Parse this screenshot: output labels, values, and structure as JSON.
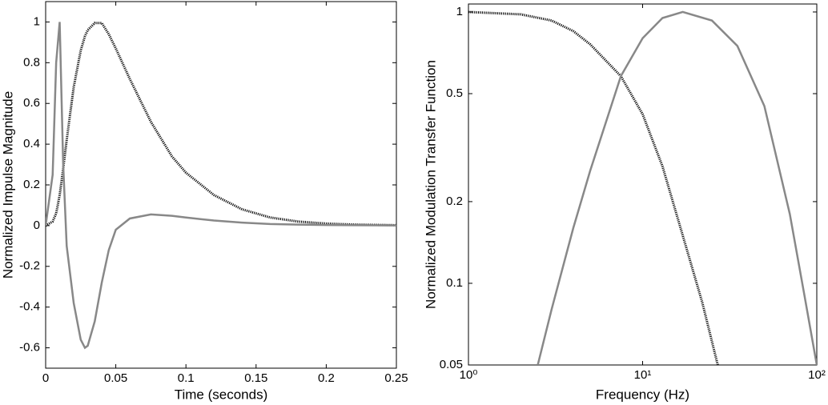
{
  "chart_data": [
    {
      "type": "line",
      "x_label": "Time (seconds)",
      "y_label": "Normalized Impulse Magnitude",
      "x": [
        0,
        0.005,
        0.0075,
        0.01,
        0.0125,
        0.015,
        0.02,
        0.025,
        0.028,
        0.03,
        0.035,
        0.04,
        0.045,
        0.05,
        0.06,
        0.075,
        0.09,
        0.1,
        0.12,
        0.14,
        0.16,
        0.18,
        0.2,
        0.22,
        0.25
      ],
      "series": [
        {
          "color": "#111111",
          "style": "dotted",
          "values": [
            0,
            0.02,
            0.06,
            0.15,
            0.28,
            0.42,
            0.68,
            0.86,
            0.93,
            0.96,
            0.995,
            0.995,
            0.94,
            0.87,
            0.72,
            0.51,
            0.34,
            0.26,
            0.15,
            0.08,
            0.04,
            0.02,
            0.01,
            0.005,
            0.002
          ]
        },
        {
          "color": "#888888",
          "style": "solid",
          "values": [
            0,
            0.25,
            0.8,
            1.0,
            0.3,
            -0.1,
            -0.38,
            -0.56,
            -0.6,
            -0.59,
            -0.47,
            -0.28,
            -0.12,
            -0.02,
            0.035,
            0.055,
            0.048,
            0.04,
            0.025,
            0.015,
            0.008,
            0.005,
            0.003,
            0.002,
            0.001
          ]
        }
      ],
      "xlim": [
        0,
        0.25
      ],
      "xticks": [
        0,
        0.05,
        0.1,
        0.15,
        0.2,
        0.25
      ],
      "ylim": [
        -0.7,
        1.1
      ],
      "yticks": [
        -0.6,
        -0.4,
        -0.2,
        0,
        0.2,
        0.4,
        0.6,
        0.8,
        1
      ],
      "grid": false
    },
    {
      "type": "line",
      "x_label": "Frequency (Hz)",
      "y_label": "Normalized Modulation Transfer Function",
      "xlog": true,
      "ylog": true,
      "series": [
        {
          "color": "#111111",
          "style": "dotted",
          "x": [
            1,
            2,
            3,
            4,
            5,
            7.5,
            10,
            13,
            17,
            22,
            27
          ],
          "values": [
            1,
            0.98,
            0.93,
            0.85,
            0.76,
            0.58,
            0.42,
            0.27,
            0.15,
            0.085,
            0.05
          ]
        },
        {
          "color": "#888888",
          "style": "solid",
          "x": [
            2.5,
            3,
            4,
            5,
            7.5,
            10,
            13,
            17,
            25,
            35,
            50,
            70,
            85,
            100
          ],
          "values": [
            0.05,
            0.08,
            0.16,
            0.26,
            0.58,
            0.8,
            0.95,
            1.0,
            0.93,
            0.75,
            0.45,
            0.18,
            0.09,
            0.05
          ]
        }
      ],
      "xlim": [
        1,
        100
      ],
      "xticks": [
        {
          "value": 1,
          "label": "10⁰"
        },
        {
          "value": 10,
          "label": "10¹"
        },
        {
          "value": 100,
          "label": "10²"
        }
      ],
      "ylim": [
        0.05,
        1.07
      ],
      "yticks": [
        0.05,
        0.1,
        0.2,
        0.5,
        1
      ],
      "grid": false
    }
  ]
}
